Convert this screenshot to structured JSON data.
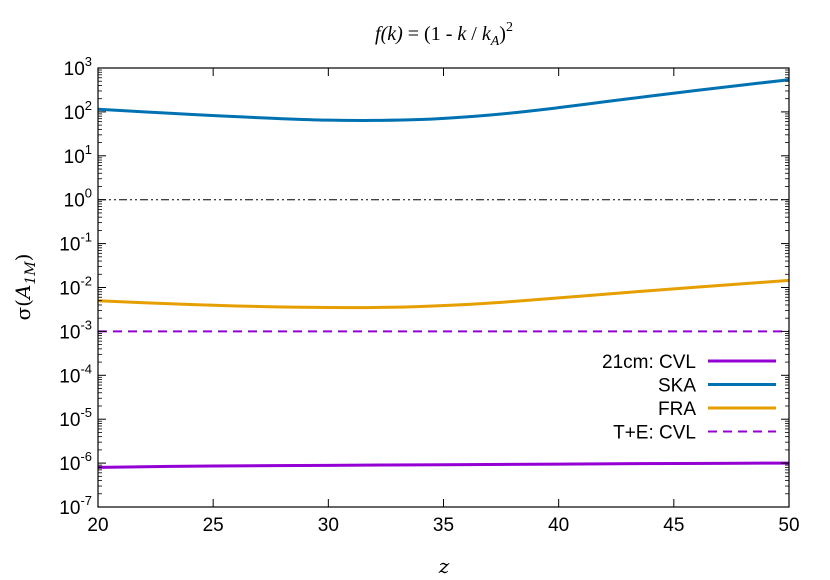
{
  "chart_data": {
    "type": "line",
    "title": "f(k) = (1 - k / kA)²",
    "title_parts": {
      "fk": "f(k)",
      "eq": " = (1 - ",
      "k": "k",
      "slash": " / ",
      "kA": "k",
      "kA_sub": "A",
      "close": ")",
      "power": "2"
    },
    "xlabel": "z",
    "ylabel": "σ(A1M)",
    "ylabel_parts": {
      "sigma": "σ(",
      "A": "A",
      "sub": "1M",
      "close": ")"
    },
    "xlim": [
      20,
      50
    ],
    "ylim": [
      1e-07,
      1000.0
    ],
    "yscale": "log",
    "x_ticks": [
      20,
      25,
      30,
      35,
      40,
      45,
      50
    ],
    "y_ticks": [
      {
        "base": "10",
        "exp": "3",
        "value": 1000.0
      },
      {
        "base": "10",
        "exp": "2",
        "value": 100.0
      },
      {
        "base": "10",
        "exp": "1",
        "value": 10.0
      },
      {
        "base": "10",
        "exp": "0",
        "value": 1.0
      },
      {
        "base": "10",
        "exp": "-1",
        "value": 0.1
      },
      {
        "base": "10",
        "exp": "-2",
        "value": 0.01
      },
      {
        "base": "10",
        "exp": "-3",
        "value": 0.001
      },
      {
        "base": "10",
        "exp": "-4",
        "value": 0.0001
      },
      {
        "base": "10",
        "exp": "-5",
        "value": 1e-05
      },
      {
        "base": "10",
        "exp": "-6",
        "value": 1e-06
      },
      {
        "base": "10",
        "exp": "-7",
        "value": 1e-07
      }
    ],
    "reference_line": {
      "y": 1,
      "style": "dash-dot",
      "color": "#000000"
    },
    "legend_position": "right",
    "series": [
      {
        "name": "21cm: CVL",
        "color": "#9400d3",
        "style": "solid",
        "x": [
          20,
          25,
          30,
          35,
          40,
          45,
          50
        ],
        "y": [
          8e-07,
          8.6e-07,
          8.9e-07,
          9.2e-07,
          9.5e-07,
          9.8e-07,
          1e-06
        ]
      },
      {
        "name": "SKA",
        "color": "#0072b2",
        "style": "solid",
        "x": [
          20,
          22,
          24,
          26,
          28,
          30,
          32,
          34,
          36,
          38,
          40,
          42,
          44,
          46,
          48,
          50
        ],
        "y": [
          115,
          100,
          88,
          78,
          70,
          65,
          64,
          67,
          77,
          95,
          125,
          170,
          230,
          310,
          410,
          540
        ]
      },
      {
        "name": "FRA",
        "color": "#e69f00",
        "style": "solid",
        "x": [
          20,
          22,
          24,
          26,
          28,
          30,
          32,
          34,
          36,
          38,
          40,
          42,
          44,
          46,
          48,
          50
        ],
        "y": [
          0.005,
          0.0045,
          0.0041,
          0.0038,
          0.0036,
          0.0035,
          0.0035,
          0.0037,
          0.0041,
          0.0048,
          0.0058,
          0.007,
          0.0085,
          0.0102,
          0.0122,
          0.0145
        ]
      },
      {
        "name": "T+E: CVL",
        "color": "#9400d3",
        "style": "dashed",
        "x": [
          20,
          50
        ],
        "y": [
          0.001,
          0.001
        ]
      }
    ]
  }
}
